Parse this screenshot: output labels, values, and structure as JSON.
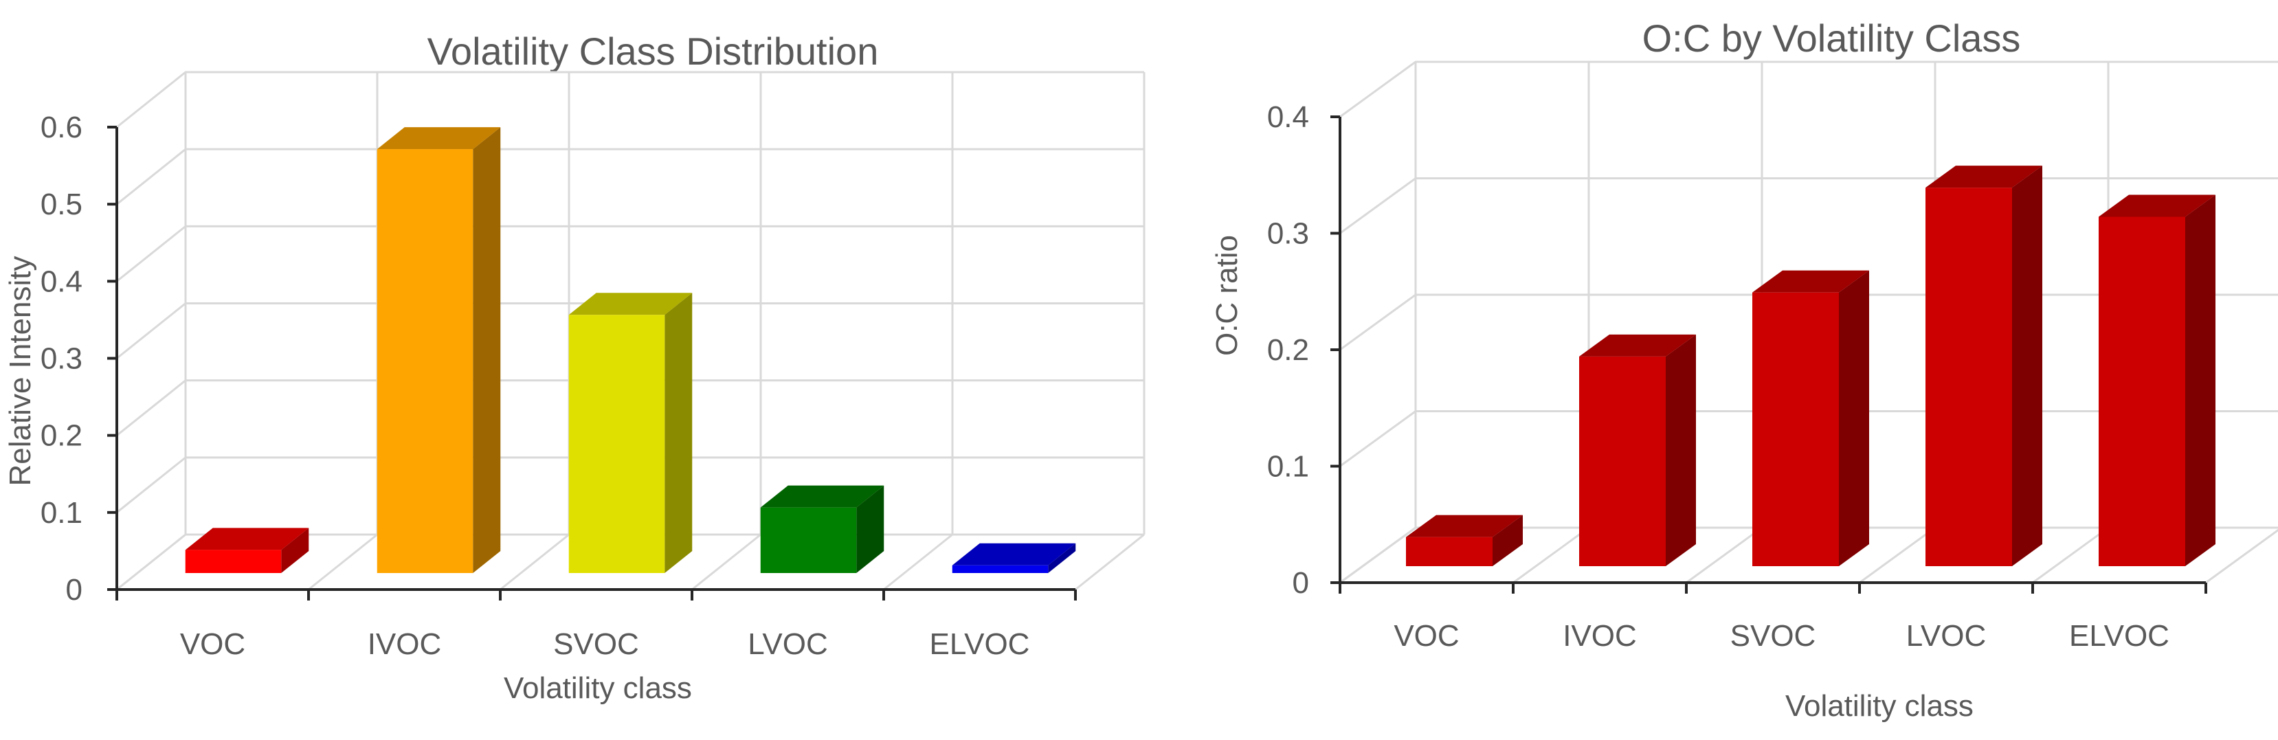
{
  "chart_data": [
    {
      "type": "bar",
      "title": "Volatility Class Distribution",
      "xlabel": "Volatility class",
      "ylabel": "Relative Intensity",
      "categories": [
        "VOC",
        "IVOC",
        "SVOC",
        "LVOC",
        "ELVOC"
      ],
      "values": [
        0.03,
        0.55,
        0.335,
        0.085,
        0.01
      ],
      "colors": [
        "#ff0000",
        "#ffa500",
        "#e0e000",
        "#008000",
        "#0000ee"
      ],
      "yticks": [
        "0",
        "0.1",
        "0.2",
        "0.3",
        "0.4",
        "0.5",
        "0.6"
      ],
      "ylim": [
        0,
        0.6
      ],
      "grid": true,
      "style": "3d-column"
    },
    {
      "type": "bar",
      "title": "O:C by Volatility Class",
      "xlabel": "Volatility class",
      "ylabel": "O:C ratio",
      "categories": [
        "VOC",
        "IVOC",
        "SVOC",
        "LVOC",
        "ELVOC"
      ],
      "values": [
        0.025,
        0.18,
        0.235,
        0.325,
        0.3
      ],
      "colors": [
        "#cc0000",
        "#cc0000",
        "#cc0000",
        "#cc0000",
        "#cc0000"
      ],
      "yticks": [
        "0",
        "0.1",
        "0.2",
        "0.3",
        "0.4"
      ],
      "ylim": [
        0,
        0.4
      ],
      "grid": true,
      "style": "3d-column"
    }
  ]
}
